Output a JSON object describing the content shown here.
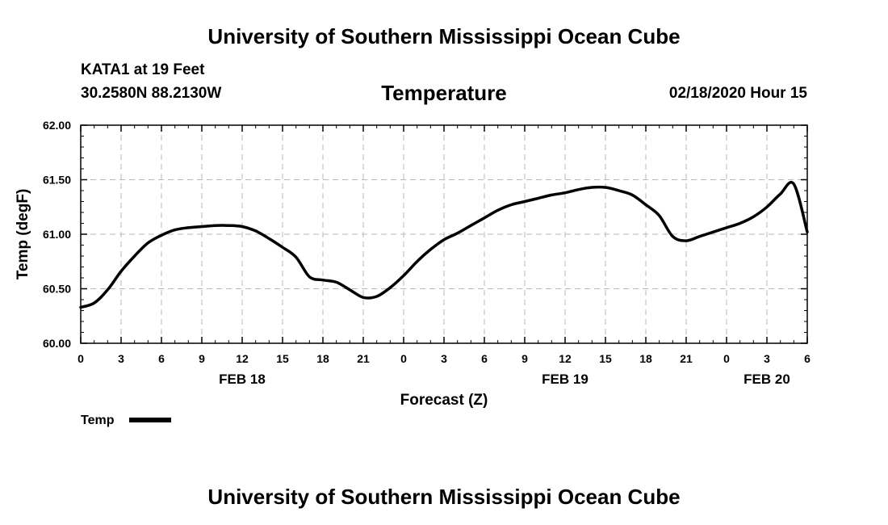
{
  "header": {
    "title": "University of Southern Mississippi Ocean Cube",
    "station": "KATA1 at 19 Feet",
    "coords": "30.2580N 88.2130W",
    "datetime": "02/18/2020 Hour 15"
  },
  "footer": {
    "title": "University of Southern Mississippi Ocean Cube"
  },
  "chart_data": {
    "type": "line",
    "title": "Temperature",
    "xlabel": "Forecast (Z)",
    "ylabel": "Temp (degF)",
    "ylim": [
      60.0,
      62.0
    ],
    "xlim": [
      0,
      54
    ],
    "yticks": [
      "60.00",
      "60.50",
      "61.00",
      "61.50",
      "62.00"
    ],
    "xticks": [
      "0",
      "3",
      "6",
      "9",
      "12",
      "15",
      "18",
      "21",
      "0",
      "3",
      "6",
      "9",
      "12",
      "15",
      "18",
      "21",
      "0",
      "3",
      "6"
    ],
    "day_labels": [
      {
        "hour": 12,
        "label": "FEB 18"
      },
      {
        "hour": 36,
        "label": "FEB 19"
      },
      {
        "hour": 51,
        "label": "FEB 20"
      }
    ],
    "legend": {
      "label": "Temp",
      "position": "bottom-left"
    },
    "grid": true,
    "line_color": "#000000",
    "series": [
      {
        "name": "Temp",
        "x": [
          0,
          1,
          2,
          3,
          4,
          5,
          6,
          7,
          8,
          9,
          10,
          11,
          12,
          13,
          14,
          15,
          16,
          17,
          18,
          19,
          20,
          21,
          22,
          23,
          24,
          25,
          26,
          27,
          28,
          29,
          30,
          31,
          32,
          33,
          34,
          35,
          36,
          37,
          38,
          39,
          40,
          41,
          42,
          43,
          44,
          45,
          46,
          47,
          48,
          49,
          50,
          51,
          52,
          53,
          54
        ],
        "values": [
          60.33,
          60.37,
          60.49,
          60.66,
          60.8,
          60.92,
          60.99,
          61.04,
          61.06,
          61.07,
          61.08,
          61.08,
          61.07,
          61.03,
          60.96,
          60.88,
          60.79,
          60.61,
          60.58,
          60.56,
          60.49,
          60.42,
          60.43,
          60.51,
          60.62,
          60.75,
          60.86,
          60.95,
          61.01,
          61.08,
          61.15,
          61.22,
          61.27,
          61.3,
          61.33,
          61.36,
          61.38,
          61.41,
          61.43,
          61.43,
          61.4,
          61.36,
          61.27,
          61.17,
          60.98,
          60.94,
          60.98,
          61.02,
          61.06,
          61.1,
          61.16,
          61.25,
          61.37,
          61.46,
          61.02
        ]
      }
    ]
  }
}
